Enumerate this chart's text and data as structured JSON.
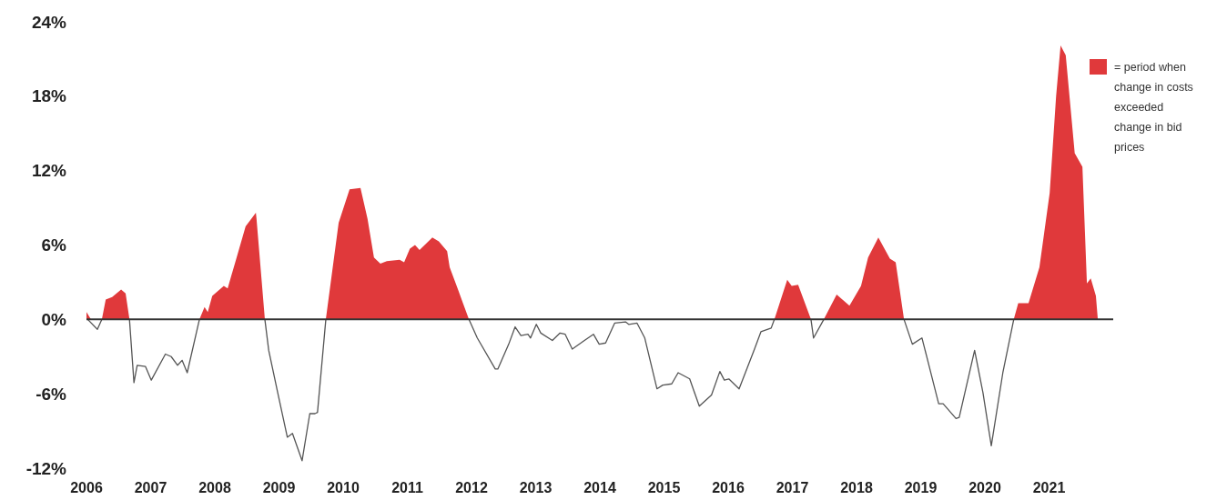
{
  "chart_data": {
    "type": "line",
    "xlim": [
      2006,
      2022
    ],
    "xticks": [
      2006,
      2007,
      2008,
      2009,
      2010,
      2011,
      2012,
      2013,
      2014,
      2015,
      2016,
      2017,
      2018,
      2019,
      2020,
      2021
    ],
    "ylim": [
      -12,
      24
    ],
    "yticks": [
      {
        "value": -12,
        "label": "-12%"
      },
      {
        "value": -6,
        "label": "-6%"
      },
      {
        "value": 0,
        "label": "0%"
      },
      {
        "value": 6,
        "label": "6%"
      },
      {
        "value": 12,
        "label": "12%"
      },
      {
        "value": 18,
        "label": "18%"
      },
      {
        "value": 24,
        "label": "24%"
      }
    ],
    "grid": false,
    "legend": "top right",
    "marker": "none",
    "ref_lines": [
      {
        "axis": "y",
        "value": 0,
        "color": "#333333"
      }
    ],
    "series": [
      {
        "type": "area",
        "name": "= period when change in costs exceeded change in bid prices",
        "color": "#e0393b",
        "x": [
          2006.0,
          2006.07,
          2006.15,
          2006.24,
          2006.3,
          2006.4,
          2006.54,
          2006.61,
          2006.67,
          2007.2,
          2007.76,
          2007.84,
          2007.89,
          2007.96,
          2008.14,
          2008.2,
          2008.34,
          2008.48,
          2008.64,
          2008.65,
          2008.78,
          2009.2,
          2009.73,
          2009.93,
          2010.1,
          2010.27,
          2010.38,
          2010.48,
          2010.58,
          2010.68,
          2010.88,
          2010.95,
          2011.04,
          2011.12,
          2011.19,
          2011.39,
          2011.49,
          2011.62,
          2011.66,
          2011.79,
          2011.96,
          2014,
          2016.72,
          2016.92,
          2016.99,
          2017.09,
          2017.29,
          2017.4,
          2017.49,
          2017.69,
          2017.89,
          2018.07,
          2018.18,
          2018.34,
          2018.52,
          2018.61,
          2018.74,
          2019.5,
          2020.45,
          2020.52,
          2020.68,
          2020.85,
          2021.01,
          2021.11,
          2021.18,
          2021.26,
          2021.4,
          2021.52,
          2021.59,
          2021.65,
          2021.73,
          2021.76
        ],
        "values": [
          0.6,
          0,
          null,
          0,
          1.6,
          1.8,
          2.4,
          2.1,
          0,
          null,
          0,
          1.0,
          0.6,
          1.9,
          2.7,
          2.5,
          5.0,
          7.5,
          8.6,
          8.1,
          0,
          null,
          0,
          7.8,
          10.5,
          10.6,
          8.1,
          5.0,
          4.5,
          4.7,
          4.8,
          4.6,
          5.7,
          6.0,
          5.6,
          6.6,
          6.3,
          5.5,
          4.2,
          2.4,
          0,
          null,
          0,
          3.2,
          2.7,
          2.8,
          0,
          null,
          0,
          2.0,
          1.1,
          2.7,
          5.0,
          6.6,
          4.9,
          4.6,
          0,
          null,
          0,
          1.3,
          1.3,
          4.2,
          10.2,
          18.0,
          22.1,
          21.3,
          13.4,
          12.3,
          2.9,
          3.3,
          1.9,
          0
        ]
      },
      {
        "color": "#555555",
        "line_style": "solid",
        "x": [
          2006.02,
          2006.17,
          2006.24,
          2006.5,
          2006.67,
          2006.74,
          2006.79,
          2006.92,
          2007.01,
          2007.23,
          2007.32,
          2007.42,
          2007.49,
          2007.57,
          2007.76,
          2008.3,
          2008.78,
          2008.84,
          2008.98,
          2009.13,
          2009.21,
          2009.36,
          2009.48,
          2009.56,
          2009.6,
          2009.73,
          2010.5,
          2011.96,
          2012.09,
          2012.37,
          2012.41,
          2012.58,
          2012.68,
          2012.77,
          2012.88,
          2012.92,
          2013.01,
          2013.08,
          2013.26,
          2013.38,
          2013.46,
          2013.57,
          2013.76,
          2013.9,
          2013.99,
          2014.09,
          2014.23,
          2014.4,
          2014.45,
          2014.58,
          2014.7,
          2014.89,
          2014.98,
          2015.12,
          2015.22,
          2015.4,
          2015.55,
          2015.74,
          2015.87,
          2015.94,
          2016.01,
          2016.17,
          2016.41,
          2016.51,
          2016.67,
          2016.72,
          2017.0,
          2017.29,
          2017.33,
          2017.49,
          2018.0,
          2018.74,
          2018.87,
          2019.02,
          2019.28,
          2019.35,
          2019.55,
          2019.6,
          2019.84,
          2019.97,
          2020.1,
          2020.28,
          2020.45
        ],
        "values": [
          0,
          -0.8,
          0,
          null,
          0,
          -5.1,
          -3.7,
          -3.8,
          -4.9,
          -2.8,
          -3.0,
          -3.7,
          -3.3,
          -4.3,
          0,
          null,
          0,
          -2.5,
          -5.9,
          -9.5,
          -9.2,
          -11.4,
          -7.6,
          -7.6,
          -7.5,
          0,
          null,
          0,
          -1.5,
          -4.0,
          -4.0,
          -2.0,
          -0.6,
          -1.3,
          -1.2,
          -1.5,
          -0.4,
          -1.1,
          -1.7,
          -1.1,
          -1.2,
          -2.4,
          -1.7,
          -1.2,
          -2.0,
          -1.9,
          -0.3,
          -0.2,
          -0.4,
          -0.3,
          -1.5,
          -5.6,
          -5.3,
          -5.2,
          -4.3,
          -4.8,
          -7.0,
          -6.1,
          -4.2,
          -4.9,
          -4.8,
          -5.6,
          -2.4,
          -1.0,
          -0.7,
          0,
          null,
          0,
          -1.5,
          0,
          null,
          0,
          -2.0,
          -1.5,
          -6.8,
          -6.8,
          -8.0,
          -7.9,
          -2.5,
          -5.9,
          -10.2,
          -4.3,
          0
        ]
      }
    ]
  }
}
